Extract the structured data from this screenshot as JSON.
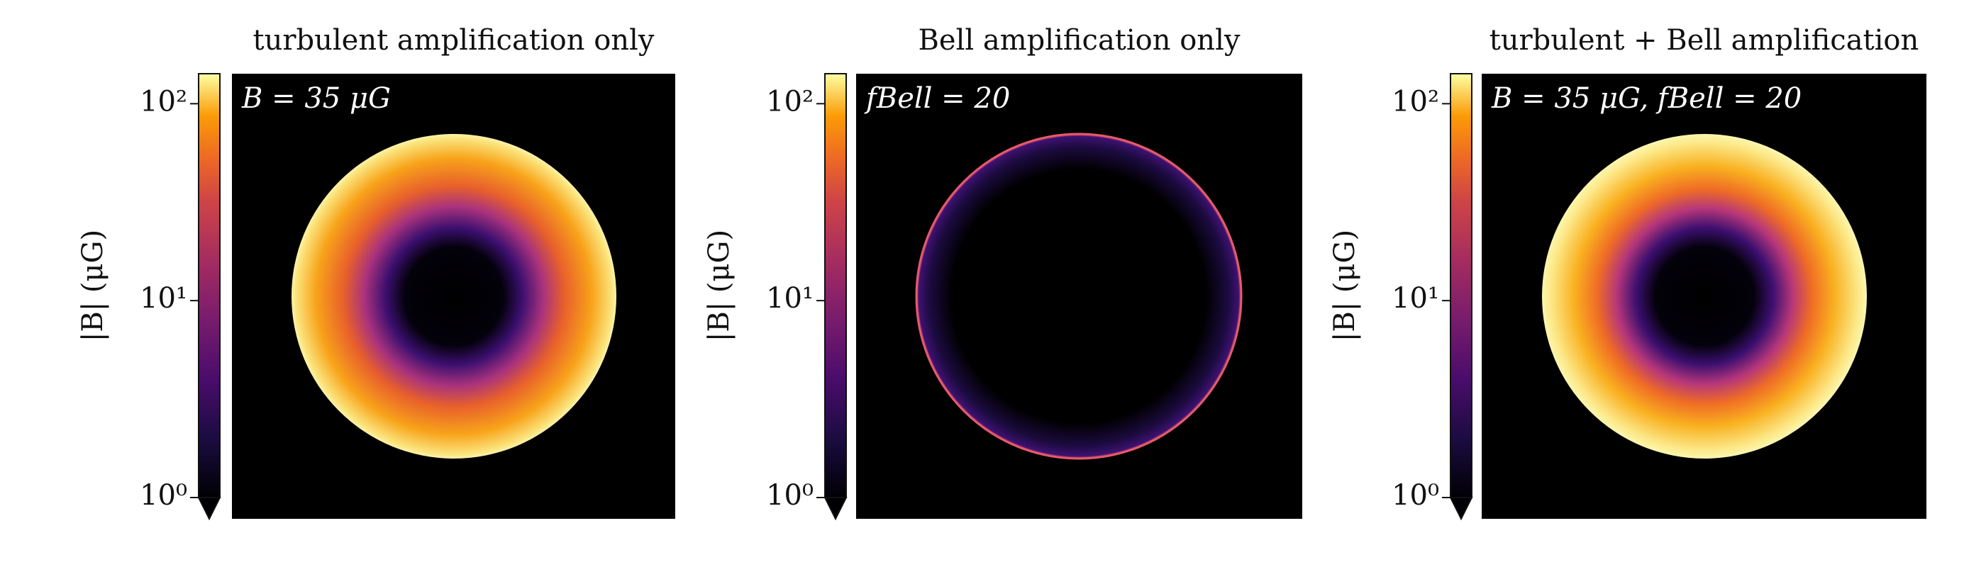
{
  "chart_data": [
    {
      "type": "heatmap",
      "title": "turbulent amplification only",
      "annotation": "B = 35 μG",
      "colormap": "inferno",
      "ylabel": "|B| (μG)",
      "yscale": "log",
      "ylim": [
        1,
        142
      ],
      "yticks": [
        {
          "value": 1,
          "label": "10⁰"
        },
        {
          "value": 10,
          "label": "10¹"
        },
        {
          "value": 100,
          "label": "10²"
        }
      ]
    },
    {
      "type": "heatmap",
      "title": "Bell amplification only",
      "annotation": "fBell = 20",
      "colormap": "inferno",
      "ylabel": "|B| (μG)",
      "yscale": "log",
      "ylim": [
        1,
        142
      ],
      "yticks": [
        {
          "value": 1,
          "label": "10⁰"
        },
        {
          "value": 10,
          "label": "10¹"
        },
        {
          "value": 100,
          "label": "10²"
        }
      ]
    },
    {
      "type": "heatmap",
      "title": "turbulent + Bell amplification",
      "annotation": "B = 35 μG, fBell = 20",
      "colormap": "inferno",
      "ylabel": "|B| (μG)",
      "yscale": "log",
      "ylim": [
        1,
        142
      ],
      "yticks": [
        {
          "value": 1,
          "label": "10⁰"
        },
        {
          "value": 10,
          "label": "10¹"
        },
        {
          "value": 100,
          "label": "10²"
        }
      ]
    }
  ]
}
